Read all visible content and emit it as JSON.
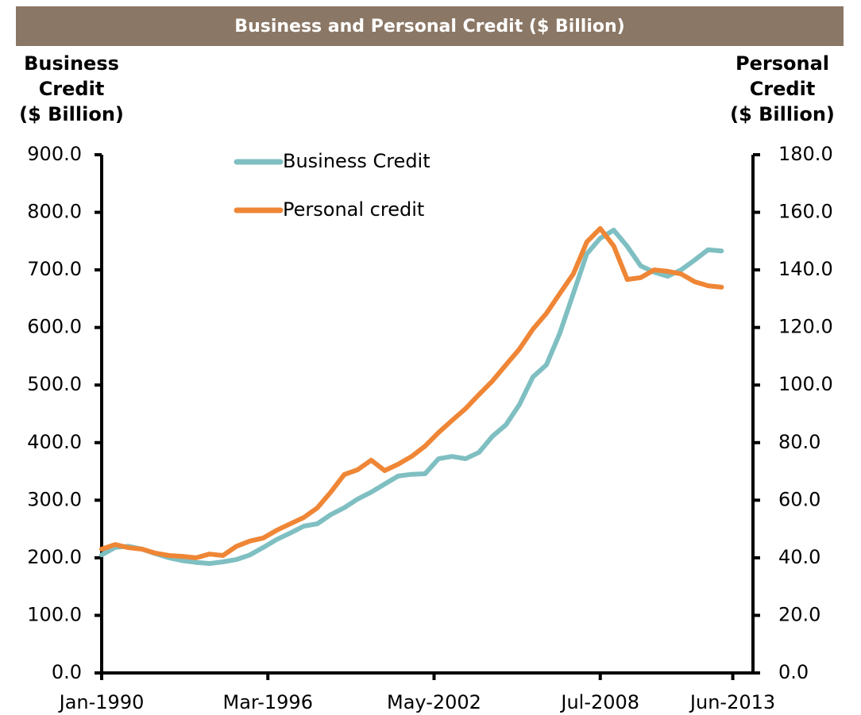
{
  "chart_data": {
    "type": "line",
    "title": "Business and Personal Credit ($ Billion)",
    "ylabel": [
      "Business",
      "Credit",
      "($ Billion)"
    ],
    "y2label": [
      "Personal",
      "Credit",
      "($ Billion)"
    ],
    "x": [
      "Jan-1990",
      "Jul-1990",
      "Jan-1991",
      "Jul-1991",
      "Jan-1992",
      "Jul-1992",
      "Jan-1993",
      "Jul-1993",
      "Jan-1994",
      "Jul-1994",
      "Jan-1995",
      "Jul-1995",
      "Jan-1996",
      "Jul-1996",
      "Jan-1997",
      "Jul-1997",
      "Jan-1998",
      "Jul-1998",
      "Jan-1999",
      "Jul-1999",
      "Jan-2000",
      "Jul-2000",
      "Jan-2001",
      "Jul-2001",
      "Jan-2002",
      "Jul-2002",
      "Jan-2003",
      "Jul-2003",
      "Jan-2004",
      "Jul-2004",
      "Jan-2005",
      "Jul-2005",
      "Jan-2006",
      "Jul-2006",
      "Jan-2007",
      "Jul-2007",
      "Jan-2008",
      "Jul-2008",
      "Jan-2009",
      "Jul-2009",
      "Jan-2010",
      "Jul-2010",
      "Jan-2011",
      "Jul-2011",
      "Jan-2012",
      "Jul-2012",
      "Jan-2013"
    ],
    "series": [
      {
        "name": "Business Credit",
        "color": "#7fbfc2",
        "axis": "y",
        "values": [
          205,
          218,
          220,
          215,
          207,
          200,
          195,
          192,
          190,
          193,
          197,
          205,
          218,
          232,
          243,
          255,
          259,
          275,
          287,
          302,
          314,
          328,
          342,
          345,
          346,
          372,
          376,
          372,
          383,
          411,
          431,
          466,
          514,
          535,
          590,
          659,
          728,
          755,
          769,
          741,
          707,
          696,
          689,
          700,
          717,
          735,
          733
        ]
      },
      {
        "name": "Personal credit",
        "color": "#ef8636",
        "axis": "y2",
        "values": [
          43,
          44.6,
          43.5,
          43,
          41.6,
          40.8,
          40.5,
          40,
          41.3,
          40.8,
          44,
          45.8,
          46.9,
          49.6,
          51.8,
          54,
          57.3,
          62.8,
          68.9,
          70.6,
          73.9,
          70.3,
          72.5,
          75.2,
          78.8,
          83.5,
          87.7,
          91.8,
          96.7,
          101.4,
          107,
          112.5,
          119.4,
          124.9,
          131.8,
          138.6,
          149.7,
          154.4,
          148.3,
          136.7,
          137.3,
          140,
          139.5,
          138.6,
          135.9,
          134.5,
          134
        ]
      }
    ],
    "xlim": [
      "Jan-1990",
      "Mar-2014"
    ],
    "xticks": [
      "Jan-1990",
      "Mar-1996",
      "May-2002",
      "Jul-2008",
      "Jun-2013"
    ],
    "ylim": [
      0,
      900
    ],
    "yticks": [
      {
        "value": 0,
        "label": "0.0"
      },
      {
        "value": 100,
        "label": "100.0"
      },
      {
        "value": 200,
        "label": "200.0"
      },
      {
        "value": 300,
        "label": "300.0"
      },
      {
        "value": 400,
        "label": "400.0"
      },
      {
        "value": 500,
        "label": "500.0"
      },
      {
        "value": 600,
        "label": "600.0"
      },
      {
        "value": 700,
        "label": "700.0"
      },
      {
        "value": 800,
        "label": "800.0"
      },
      {
        "value": 900,
        "label": "900.0"
      }
    ],
    "y2lim": [
      0,
      180
    ],
    "y2ticks": [
      {
        "value": 0,
        "label": "0.0"
      },
      {
        "value": 20,
        "label": "20.0"
      },
      {
        "value": 40,
        "label": "40.0"
      },
      {
        "value": 60,
        "label": "60.0"
      },
      {
        "value": 80,
        "label": "80.0"
      },
      {
        "value": 100,
        "label": "100.0"
      },
      {
        "value": 120,
        "label": "120.0"
      },
      {
        "value": 140,
        "label": "140.0"
      },
      {
        "value": 160,
        "label": "160.0"
      },
      {
        "value": 180,
        "label": "180.0"
      }
    ],
    "grid": false,
    "legend": "upper left"
  }
}
